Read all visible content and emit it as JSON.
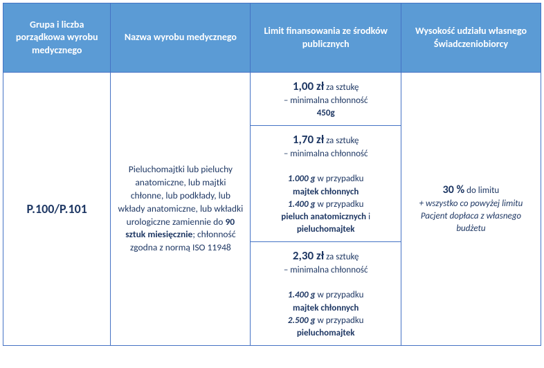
{
  "headers": {
    "col1": "Grupa i liczba porządkowa wyrobu medycznego",
    "col2": "Nazwa wyrobu medycznego",
    "col3": "Limit finansowania ze środków publicznych",
    "col4": "Wysokość udziału własnego Świadczeniobiorcy"
  },
  "code": "P.100/P.101",
  "description": {
    "part1": "Pieluchomajtki lub pieluchy anatomiczne, lub majtki chłonne, lub podkłady, lub wkłady anatomiczne, lub wkładki urologiczne zamiennie do ",
    "bold1": "90 sztuk miesięcznie",
    "part2": "; chłonność zgodna z normą ISO 11948"
  },
  "limits": {
    "row1": {
      "price": "1,00 zł",
      "unit": " za sztukę",
      "line2": "– minimalna chłonność",
      "weight": "450g"
    },
    "row2": {
      "price": "1,70 zł",
      "unit": " za sztukę",
      "line2": "– minimalna chłonność",
      "w1": "1.000 g",
      "t1": " w przypadku ",
      "p1": "majtek chłonnych",
      "w2": "1.400 g",
      "t2": " w przypadku ",
      "p2a": "pieluch anatomicznych",
      "p2and": " i ",
      "p2b": "pieluchomajtek"
    },
    "row3": {
      "price": "2,30 zł",
      "unit": " za sztukę",
      "line2": "– minimalna chłonność",
      "w1": "1.400 g",
      "t1": " w przypadku ",
      "p1": "majtek chłonnych",
      "w2": "2.500 g",
      "t2": " w przypadku ",
      "p2": "pieluchomajtek"
    }
  },
  "share": {
    "pct": "30 %",
    "pcttext": " do limitu",
    "note": "+ wszystko co powyżej limitu Pacjent dopłaca z własnego budżetu"
  },
  "colors": {
    "header_bg": "#5b9bd5",
    "border": "#4472c4",
    "text": "#1f3864",
    "header_text": "#ffffff"
  }
}
